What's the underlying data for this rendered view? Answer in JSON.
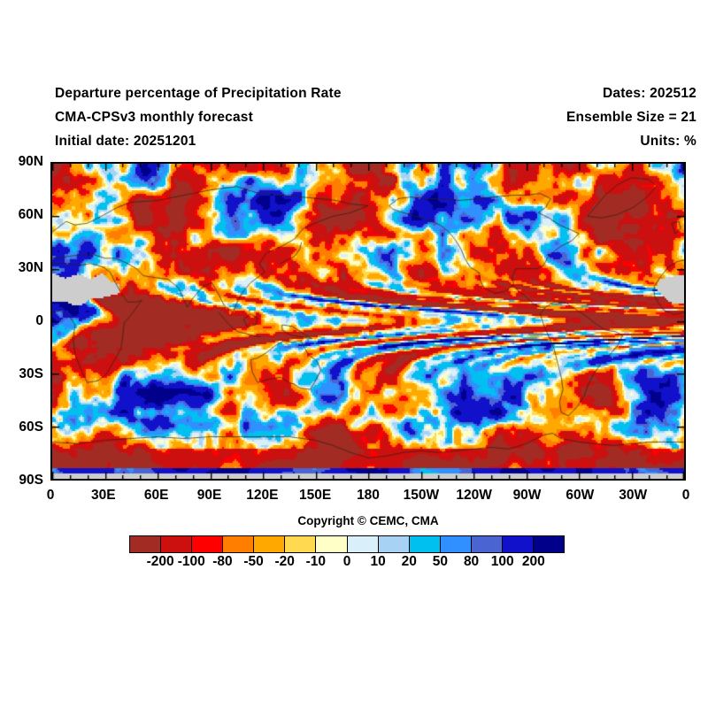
{
  "header": {
    "title": "Departure percentage of Precipitation Rate",
    "model": "CMA-CPSv3 monthly forecast",
    "initial_date": "Initial date: 20251201",
    "dates": "Dates: 202512",
    "ensemble": "Ensemble Size = 21",
    "units": "Units: %"
  },
  "footer": {
    "copyright": "Copyright © CEMC, CMA"
  },
  "chart_data": {
    "type": "heatmap",
    "title": "Departure percentage of Precipitation Rate",
    "subtitle": "CMA-CPSv3 monthly forecast, initial date 20251201, valid 202512, ensemble size 21",
    "units": "%",
    "projection": "equirectangular global map, longitude 0E eastward to 360 (0) left to right, latitude 90N (top) to 90S (bottom)",
    "lat_ticks": [
      "90N",
      "60N",
      "30N",
      "0",
      "30S",
      "60S",
      "90S"
    ],
    "lon_ticks": [
      "0",
      "30E",
      "60E",
      "90E",
      "120E",
      "150E",
      "180",
      "150W",
      "120W",
      "90W",
      "60W",
      "30W",
      "0"
    ],
    "colorbar_levels": [
      -200,
      -100,
      -80,
      -50,
      -20,
      -10,
      0,
      10,
      20,
      50,
      80,
      100,
      200
    ],
    "colorbar_labels": [
      "-200",
      "-100",
      "-80",
      "-50",
      "-20",
      "-10",
      "0",
      "10",
      "20",
      "50",
      "80",
      "100",
      "200"
    ],
    "colorbar_colors": [
      "#A22B24",
      "#CC0F0F",
      "#FF0000",
      "#FF7E00",
      "#FFA800",
      "#FFD94F",
      "#FFFFC8",
      "#D9F0FB",
      "#A8D2F4",
      "#00C0F0",
      "#3090FF",
      "#4A64D2",
      "#1111CC",
      "#00008B"
    ],
    "missing_color": "#CDCDCD",
    "visible_features": "Filled contour anomaly field over world map with coastlines; gray missing-data area over Sahara region (~8N-28N around 0 meridian) and along the 90S edge row; strong negative (red/dark red) band over Antarctica ~65S-84S with positive (blue) band just above the 90S edge"
  }
}
